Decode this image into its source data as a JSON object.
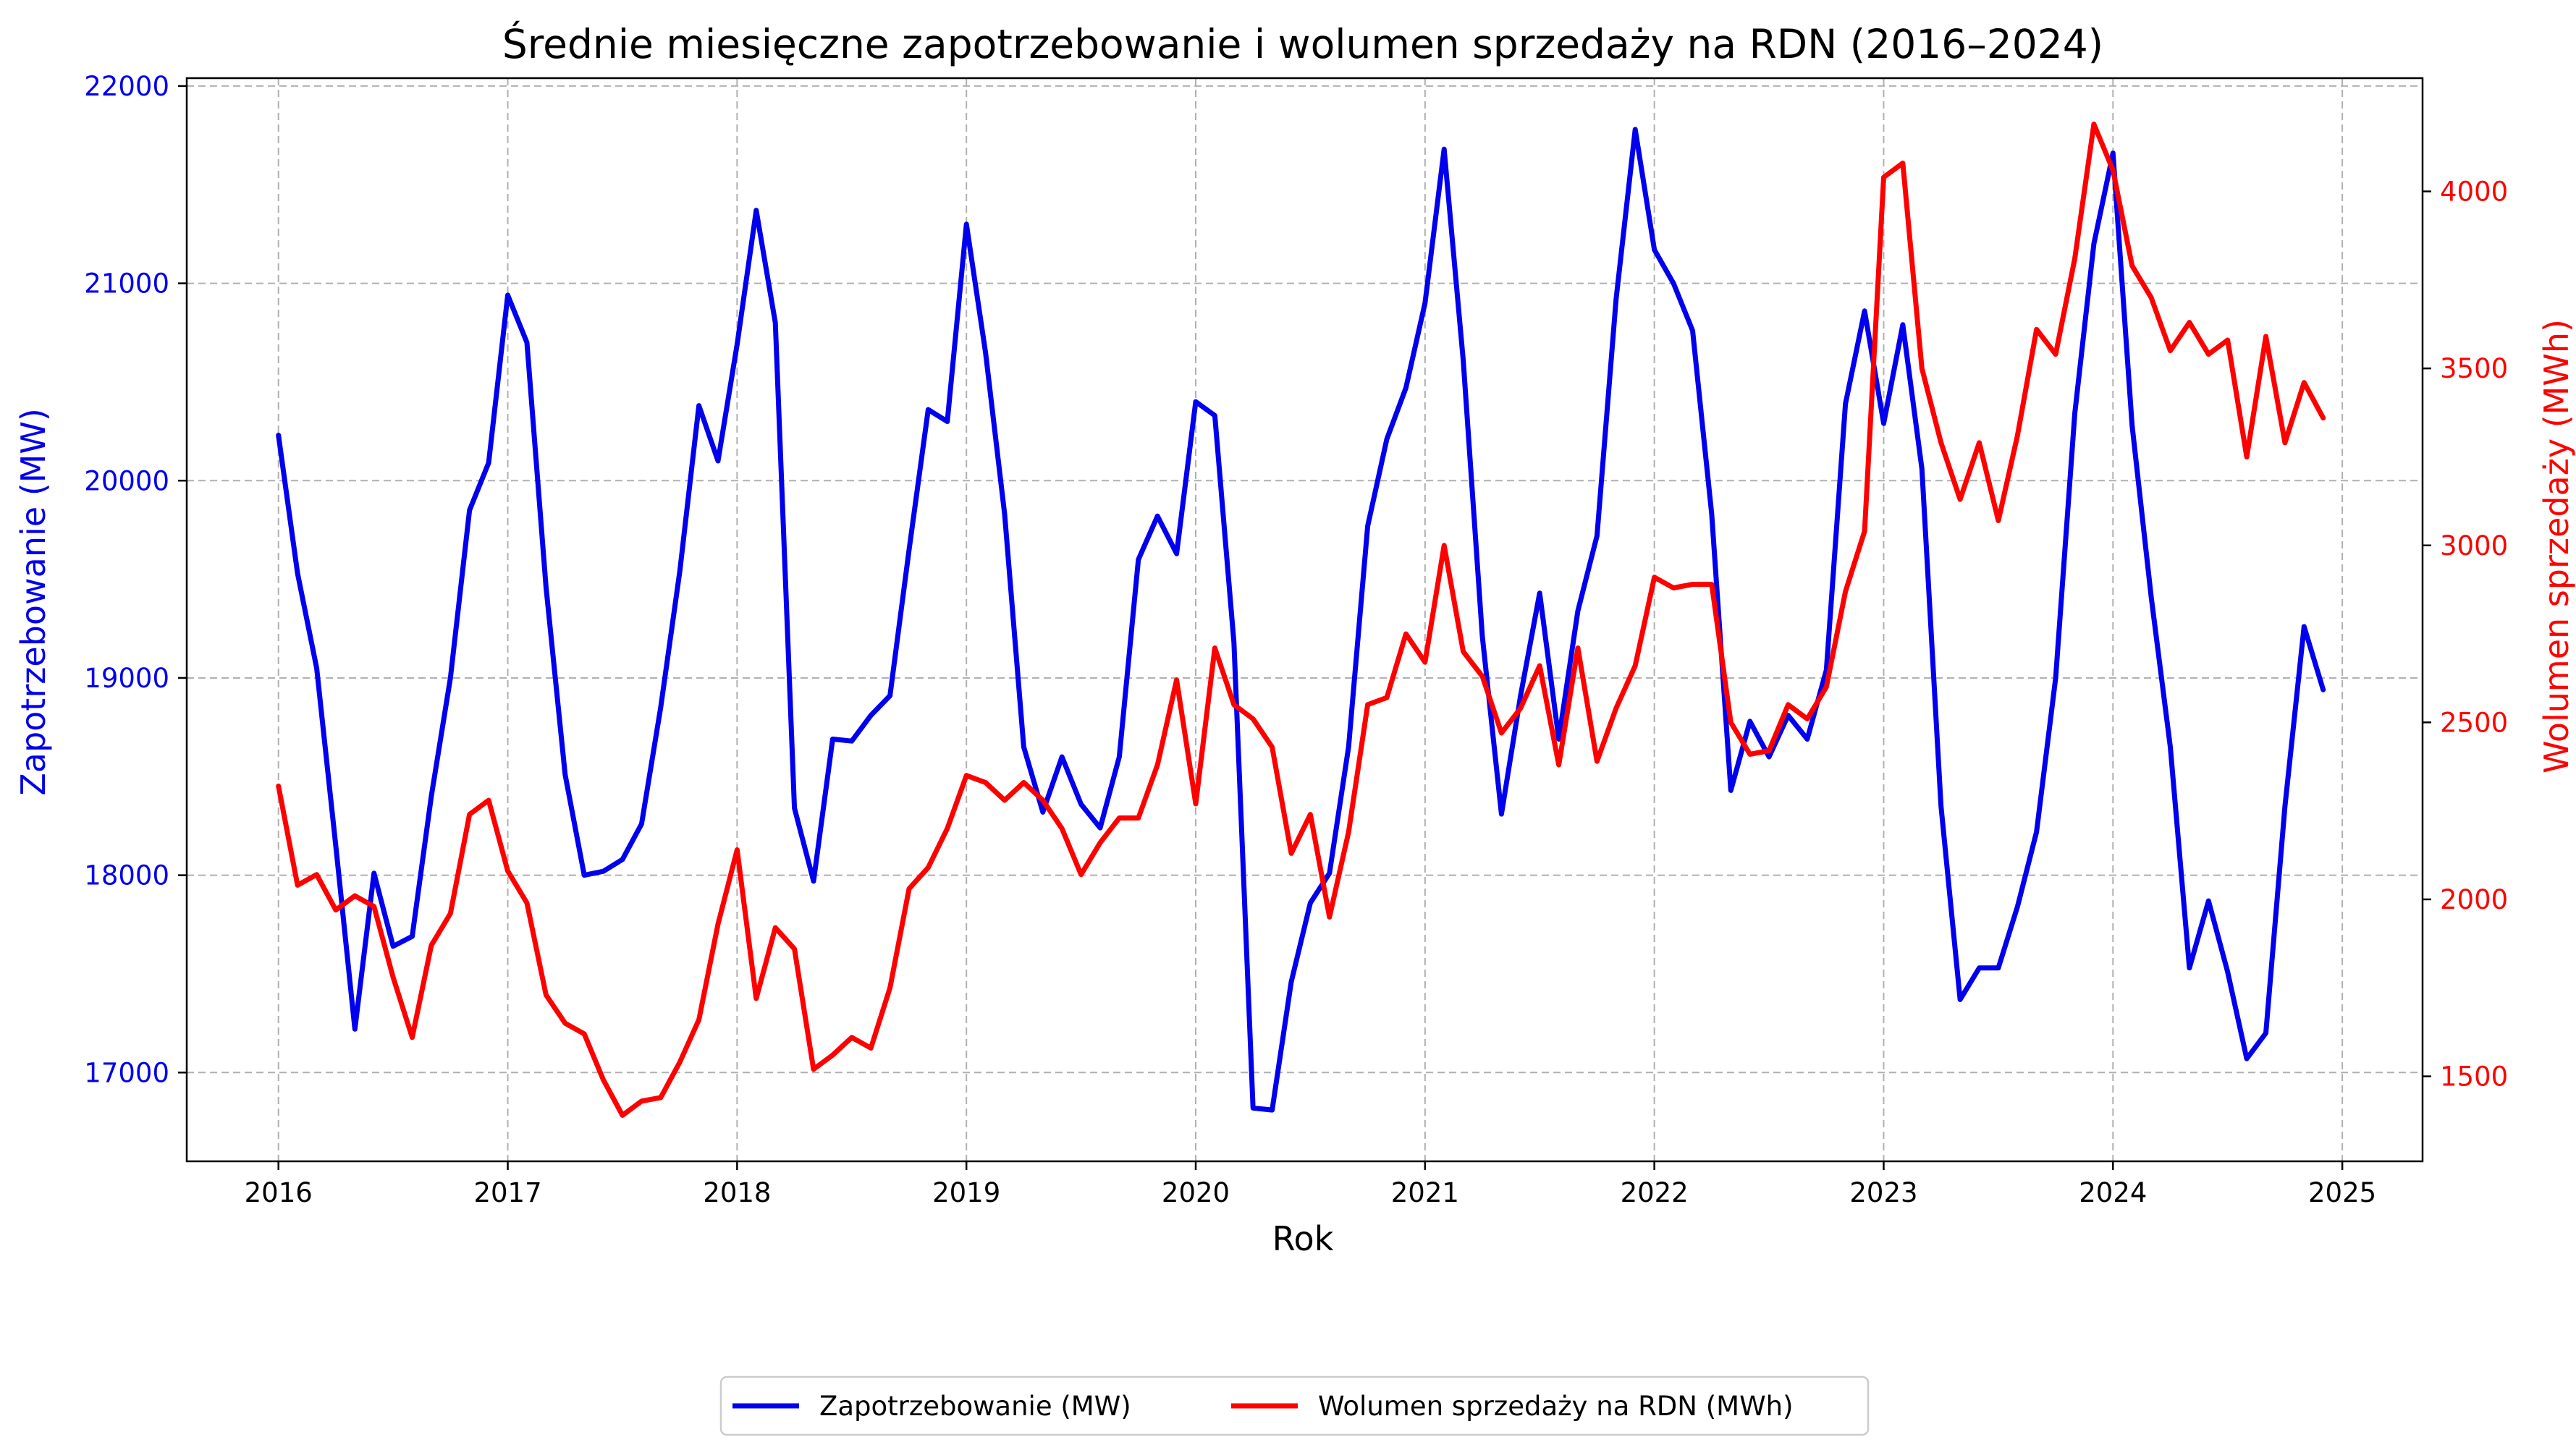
{
  "chart_data": {
    "type": "line",
    "title": "Średnie miesięczne zapotrzebowanie i wolumen sprzedaży na RDN (2016–2024)",
    "xlabel": "Rok",
    "ylabel_left": "Zapotrzebowanie (MW)",
    "ylabel_right": "Wolumen sprzedaży (MWh)",
    "x_range": [
      2015.6,
      2025.35
    ],
    "x_ticks": [
      2016,
      2017,
      2018,
      2019,
      2020,
      2021,
      2022,
      2023,
      2024,
      2025
    ],
    "x_tick_labels": [
      "2016",
      "2017",
      "2018",
      "2019",
      "2020",
      "2021",
      "2022",
      "2023",
      "2024",
      "2025"
    ],
    "ylim_left": [
      16550,
      22040
    ],
    "yticks_left": [
      17000,
      18000,
      19000,
      20000,
      21000,
      22000
    ],
    "ytick_labels_left": [
      "17000",
      "18000",
      "19000",
      "20000",
      "21000",
      "22000"
    ],
    "ylim_right": [
      1260,
      4320
    ],
    "yticks_right": [
      1500,
      2000,
      2500,
      3000,
      3500,
      4000
    ],
    "ytick_labels_right": [
      "1500",
      "2000",
      "2500",
      "3000",
      "3500",
      "4000"
    ],
    "grid": true,
    "legend_position": "bottom-center",
    "series": [
      {
        "name": "Zapotrzebowanie (MW)",
        "axis": "left",
        "color": "#0000ee",
        "start": "2016-01",
        "values": [
          20230,
          19530,
          19050,
          18150,
          17220,
          18010,
          17640,
          17690,
          18400,
          19000,
          19850,
          20090,
          20940,
          20700,
          19460,
          18510,
          18000,
          18020,
          18080,
          18260,
          18850,
          19540,
          20380,
          20100,
          20690,
          21370,
          20800,
          18340,
          17970,
          18690,
          18680,
          18810,
          18910,
          19650,
          20360,
          20300,
          21300,
          20650,
          19830,
          18650,
          18320,
          18600,
          18360,
          18240,
          18600,
          19600,
          19820,
          19630,
          20400,
          20330,
          19180,
          16820,
          16810,
          17460,
          17860,
          18010,
          18650,
          19770,
          20210,
          20470,
          20900,
          21680,
          20610,
          19210,
          18310,
          18910,
          19430,
          18690,
          19340,
          19720,
          20920,
          21780,
          21170,
          21000,
          20760,
          19830,
          18430,
          18780,
          18600,
          18810,
          18690,
          19040,
          20390,
          20860,
          20290,
          20790,
          20060,
          18350,
          17370,
          17530,
          17530,
          17840,
          18220,
          19000,
          20340,
          21200,
          21660,
          20280,
          19410,
          18650,
          17530,
          17870,
          17510,
          17070,
          17200,
          18350,
          19260,
          18940
        ]
      },
      {
        "name": "Wolumen sprzedaży na RDN (MWh)",
        "axis": "right",
        "color": "#ff0000",
        "start": "2016-01",
        "values": [
          2320,
          2040,
          2070,
          1970,
          2010,
          1980,
          1780,
          1610,
          1870,
          1960,
          2240,
          2280,
          2080,
          1990,
          1730,
          1650,
          1620,
          1490,
          1390,
          1430,
          1440,
          1540,
          1660,
          1930,
          2140,
          1720,
          1920,
          1860,
          1520,
          1560,
          1610,
          1580,
          1750,
          2030,
          2090,
          2200,
          2350,
          2330,
          2280,
          2330,
          2280,
          2200,
          2070,
          2160,
          2230,
          2230,
          2380,
          2620,
          2270,
          2710,
          2550,
          2510,
          2430,
          2130,
          2240,
          1950,
          2190,
          2550,
          2570,
          2750,
          2670,
          3000,
          2700,
          2630,
          2470,
          2540,
          2660,
          2380,
          2710,
          2390,
          2540,
          2660,
          2910,
          2880,
          2890,
          2890,
          2500,
          2410,
          2420,
          2550,
          2510,
          2600,
          2870,
          3040,
          4040,
          4080,
          3500,
          3290,
          3130,
          3290,
          3070,
          3310,
          3610,
          3540,
          3810,
          4190,
          4060,
          3790,
          3700,
          3550,
          3630,
          3540,
          3580,
          3250,
          3590,
          3290,
          3460,
          3360
        ]
      }
    ]
  }
}
